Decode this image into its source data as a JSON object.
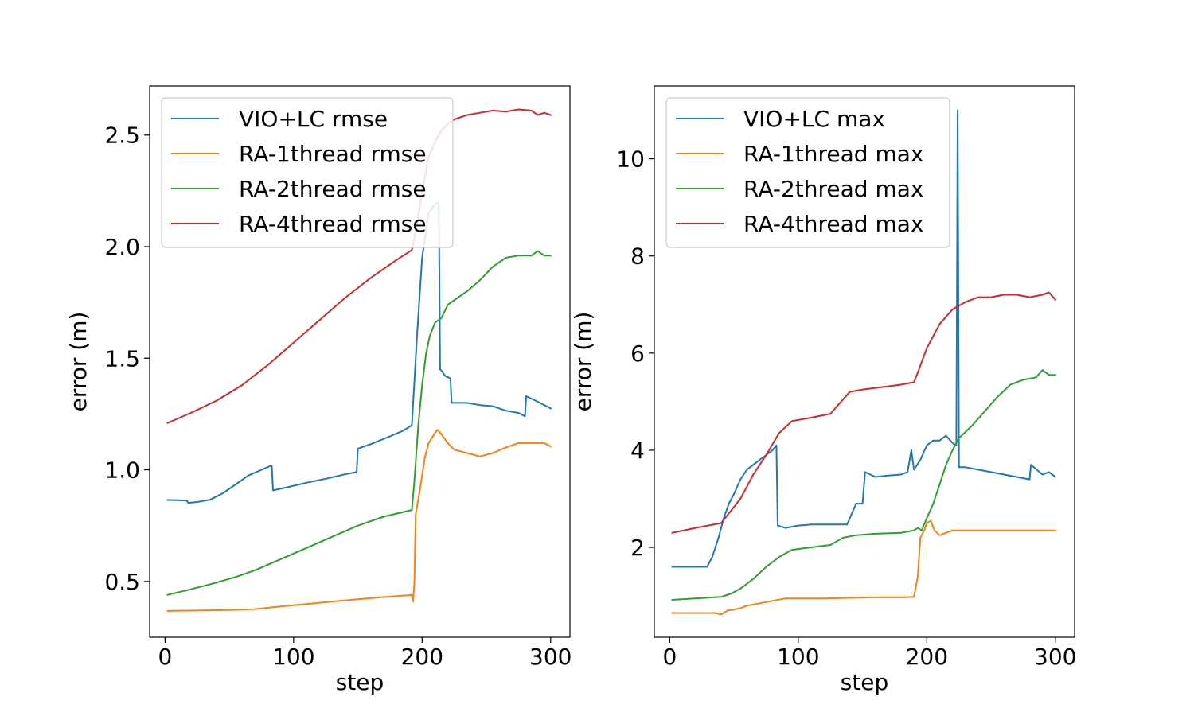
{
  "chart_data": [
    {
      "type": "line",
      "title": "",
      "xlabel": "step",
      "ylabel": "error (m)",
      "xlim": [
        -12,
        315
      ],
      "ylim": [
        0.25,
        2.72
      ],
      "xticks": [
        0,
        100,
        200,
        300
      ],
      "yticks": [
        0.5,
        1.0,
        1.5,
        2.0,
        2.5
      ],
      "ytick_labels": [
        "0.5",
        "1.0",
        "1.5",
        "2.0",
        "2.5"
      ],
      "grid": false,
      "legend": "top-left",
      "series": [
        {
          "name": "VIO+LC rmse",
          "color": "#1f77b4",
          "x": [
            2,
            10,
            17,
            18,
            25,
            35,
            45,
            55,
            65,
            75,
            83,
            84,
            95,
            110,
            125,
            140,
            149,
            150,
            160,
            175,
            185,
            192,
            196,
            200,
            205,
            210,
            213,
            214,
            215,
            218,
            222,
            223,
            225,
            235,
            245,
            255,
            265,
            275,
            280,
            281,
            290,
            295,
            300
          ],
          "y": [
            0.865,
            0.864,
            0.862,
            0.852,
            0.856,
            0.866,
            0.895,
            0.935,
            0.975,
            1.0,
            1.02,
            0.908,
            0.922,
            0.942,
            0.96,
            0.98,
            0.99,
            1.095,
            1.115,
            1.15,
            1.175,
            1.2,
            1.6,
            1.95,
            2.15,
            2.19,
            2.2,
            1.45,
            1.445,
            1.42,
            1.41,
            1.3,
            1.3,
            1.3,
            1.29,
            1.285,
            1.265,
            1.255,
            1.24,
            1.33,
            1.305,
            1.29,
            1.275
          ]
        },
        {
          "name": "RA-1thread rmse",
          "color": "#ff7f0e",
          "x": [
            2,
            30,
            50,
            70,
            90,
            110,
            130,
            150,
            170,
            192,
            193,
            194,
            195,
            198,
            202,
            205,
            210,
            212,
            215,
            220,
            225,
            235,
            245,
            255,
            265,
            275,
            285,
            295,
            300
          ],
          "y": [
            0.368,
            0.37,
            0.372,
            0.376,
            0.388,
            0.399,
            0.41,
            0.42,
            0.43,
            0.44,
            0.41,
            0.5,
            0.8,
            0.9,
            1.05,
            1.12,
            1.165,
            1.18,
            1.16,
            1.12,
            1.09,
            1.075,
            1.06,
            1.075,
            1.1,
            1.12,
            1.12,
            1.12,
            1.105
          ]
        },
        {
          "name": "RA-2thread rmse",
          "color": "#2ca02c",
          "x": [
            2,
            20,
            40,
            55,
            70,
            90,
            110,
            130,
            150,
            170,
            192,
            194,
            197,
            200,
            203,
            206,
            210,
            215,
            220,
            225,
            235,
            245,
            255,
            265,
            275,
            285,
            290,
            295,
            300
          ],
          "y": [
            0.44,
            0.465,
            0.495,
            0.52,
            0.55,
            0.6,
            0.65,
            0.7,
            0.75,
            0.79,
            0.82,
            0.95,
            1.2,
            1.38,
            1.52,
            1.6,
            1.66,
            1.68,
            1.74,
            1.76,
            1.8,
            1.85,
            1.91,
            1.95,
            1.96,
            1.96,
            1.98,
            1.96,
            1.96
          ]
        },
        {
          "name": "RA-4thread rmse",
          "color": "#d62728",
          "x": [
            2,
            20,
            40,
            60,
            80,
            100,
            120,
            140,
            160,
            180,
            192,
            196,
            200,
            205,
            210,
            215,
            220,
            225,
            235,
            245,
            255,
            265,
            275,
            285,
            290,
            295,
            300
          ],
          "y": [
            1.21,
            1.255,
            1.31,
            1.38,
            1.47,
            1.57,
            1.67,
            1.77,
            1.86,
            1.94,
            1.985,
            2.1,
            2.25,
            2.4,
            2.47,
            2.52,
            2.55,
            2.57,
            2.59,
            2.6,
            2.61,
            2.605,
            2.615,
            2.61,
            2.59,
            2.6,
            2.59
          ]
        }
      ]
    },
    {
      "type": "line",
      "title": "",
      "xlabel": "step",
      "ylabel": "error (m)",
      "xlim": [
        -12,
        315
      ],
      "ylim": [
        0.15,
        11.5
      ],
      "xticks": [
        0,
        100,
        200,
        300
      ],
      "yticks": [
        2,
        4,
        6,
        8,
        10
      ],
      "ytick_labels": [
        "2",
        "4",
        "6",
        "8",
        "10"
      ],
      "grid": false,
      "legend": "top-left",
      "series": [
        {
          "name": "VIO+LC max",
          "color": "#1f77b4",
          "x": [
            2,
            20,
            29,
            33,
            38,
            42,
            46,
            50,
            55,
            60,
            65,
            70,
            75,
            80,
            83,
            84,
            90,
            100,
            110,
            120,
            130,
            138,
            145,
            150,
            152,
            160,
            170,
            180,
            185,
            188,
            190,
            195,
            200,
            205,
            210,
            215,
            220,
            223,
            224,
            225,
            226,
            230,
            240,
            250,
            260,
            270,
            280,
            281,
            290,
            295,
            300
          ],
          "y": [
            1.6,
            1.6,
            1.6,
            1.8,
            2.2,
            2.6,
            2.9,
            3.1,
            3.4,
            3.6,
            3.7,
            3.8,
            3.9,
            4.0,
            4.1,
            2.45,
            2.4,
            2.45,
            2.47,
            2.47,
            2.47,
            2.47,
            2.9,
            2.9,
            3.55,
            3.45,
            3.48,
            3.5,
            3.55,
            4.0,
            3.6,
            3.8,
            4.1,
            4.2,
            4.2,
            4.3,
            4.15,
            4.1,
            11.0,
            3.65,
            3.65,
            3.65,
            3.6,
            3.55,
            3.5,
            3.45,
            3.4,
            3.7,
            3.5,
            3.55,
            3.45
          ]
        },
        {
          "name": "RA-1thread max",
          "color": "#ff7f0e",
          "x": [
            2,
            20,
            35,
            40,
            45,
            50,
            55,
            60,
            70,
            80,
            90,
            100,
            120,
            140,
            160,
            180,
            190,
            193,
            195,
            198,
            200,
            203,
            206,
            210,
            215,
            220,
            240,
            260,
            280,
            300
          ],
          "y": [
            0.65,
            0.65,
            0.65,
            0.62,
            0.7,
            0.72,
            0.75,
            0.8,
            0.85,
            0.9,
            0.95,
            0.95,
            0.95,
            0.96,
            0.97,
            0.97,
            0.98,
            1.4,
            2.2,
            2.35,
            2.5,
            2.55,
            2.35,
            2.25,
            2.3,
            2.35,
            2.35,
            2.35,
            2.35,
            2.35
          ]
        },
        {
          "name": "RA-2thread max",
          "color": "#2ca02c",
          "x": [
            2,
            20,
            40,
            48,
            55,
            65,
            75,
            85,
            95,
            110,
            125,
            135,
            145,
            160,
            180,
            190,
            193,
            196,
            200,
            205,
            210,
            215,
            220,
            225,
            235,
            245,
            255,
            265,
            275,
            285,
            290,
            295,
            300
          ],
          "y": [
            0.92,
            0.95,
            0.98,
            1.05,
            1.15,
            1.35,
            1.6,
            1.8,
            1.95,
            2.0,
            2.05,
            2.2,
            2.25,
            2.28,
            2.3,
            2.35,
            2.4,
            2.35,
            2.6,
            2.9,
            3.3,
            3.7,
            4.0,
            4.25,
            4.5,
            4.8,
            5.1,
            5.35,
            5.45,
            5.5,
            5.65,
            5.55,
            5.55
          ]
        },
        {
          "name": "RA-4thread max",
          "color": "#d62728",
          "x": [
            2,
            20,
            40,
            55,
            65,
            75,
            85,
            95,
            110,
            125,
            135,
            140,
            150,
            165,
            180,
            190,
            193,
            200,
            210,
            220,
            230,
            240,
            250,
            260,
            270,
            280,
            290,
            295,
            300
          ],
          "y": [
            2.3,
            2.4,
            2.5,
            3.0,
            3.5,
            3.9,
            4.35,
            4.6,
            4.67,
            4.75,
            5.05,
            5.2,
            5.25,
            5.3,
            5.35,
            5.4,
            5.6,
            6.1,
            6.6,
            6.9,
            7.05,
            7.15,
            7.15,
            7.2,
            7.2,
            7.15,
            7.2,
            7.25,
            7.1
          ]
        }
      ]
    }
  ]
}
